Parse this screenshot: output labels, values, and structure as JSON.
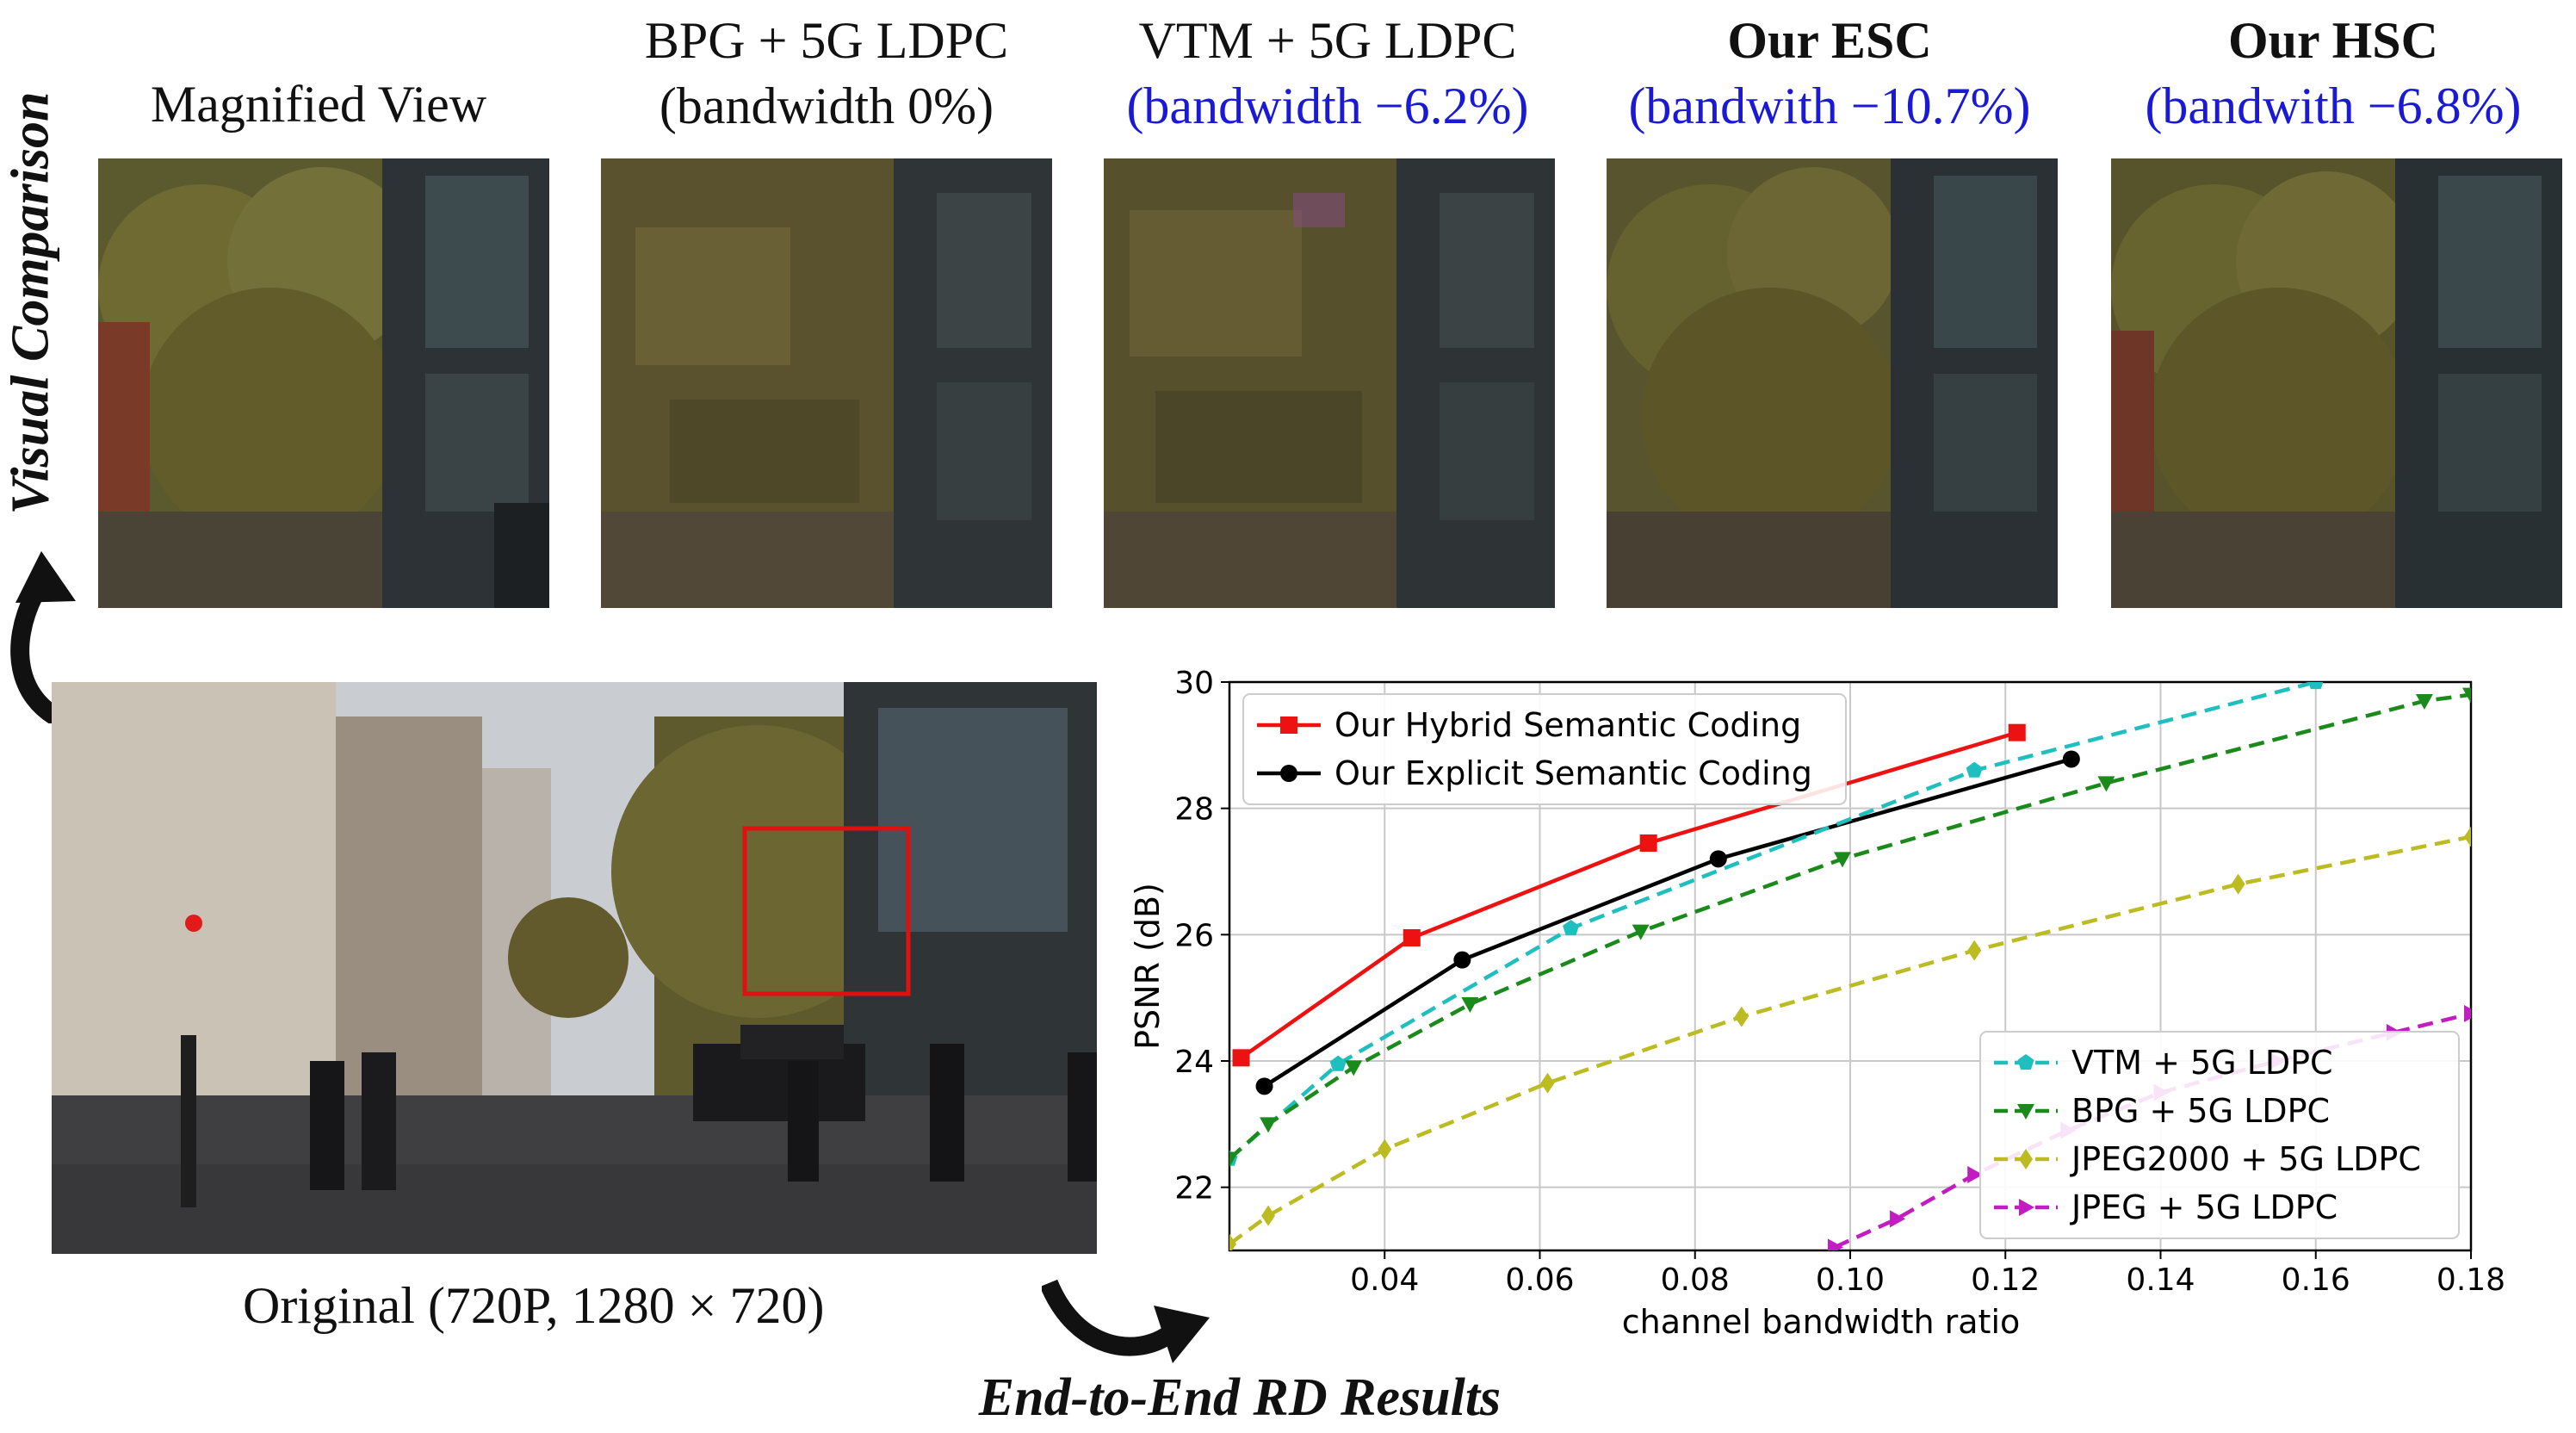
{
  "side_title": "Visual Comparison",
  "bottom_title": "End-to-End RD Results",
  "original_caption": "Original (720P, 1280 × 720)",
  "panels": [
    {
      "top": "Magnified View",
      "bottom": ""
    },
    {
      "top": "BPG + 5G LDPC",
      "bottom": "(bandwidth 0%)"
    },
    {
      "top": "VTM + 5G LDPC",
      "bottom": "(bandwidth −6.2%)"
    },
    {
      "top": "Our ESC",
      "bottom": "(bandwith −10.7%)"
    },
    {
      "top": "Our HSC",
      "bottom": "(bandwith −6.8%)"
    }
  ],
  "colors": {
    "blue_text": "#1a1ad6",
    "highlight_box": "#e01010"
  },
  "chart_data": {
    "type": "line",
    "xlabel": "channel bandwidth ratio",
    "ylabel": "PSNR (dB)",
    "xlim": [
      0.02,
      0.18
    ],
    "ylim": [
      21,
      30
    ],
    "xticks": [
      "0.04",
      "0.06",
      "0.08",
      "0.10",
      "0.12",
      "0.14",
      "0.16",
      "0.18"
    ],
    "yticks": [
      "22",
      "24",
      "26",
      "28",
      "30"
    ],
    "grid": true,
    "legends": [
      {
        "placement": "top-left",
        "entries": [
          "Our Hybrid Semantic Coding",
          "Our Explicit Semantic Coding"
        ]
      },
      {
        "placement": "bottom-right",
        "entries": [
          "VTM + 5G LDPC",
          "BPG + 5G LDPC",
          "JPEG2000 + 5G LDPC",
          "JPEG + 5G LDPC"
        ]
      }
    ],
    "series": [
      {
        "name": "Our Hybrid Semantic Coding",
        "color": "#ee1111",
        "style": "solid",
        "marker": "square",
        "x": [
          0.0215,
          0.0435,
          0.074,
          0.1215
        ],
        "y": [
          24.05,
          25.95,
          27.45,
          29.2
        ]
      },
      {
        "name": "Our Explicit Semantic Coding",
        "color": "#000000",
        "style": "solid",
        "marker": "circle",
        "x": [
          0.0245,
          0.05,
          0.083,
          0.1285
        ],
        "y": [
          23.6,
          25.6,
          27.2,
          28.78
        ]
      },
      {
        "name": "VTM + 5G LDPC",
        "color": "#1fbfbf",
        "style": "dashed",
        "marker": "pentagon",
        "x": [
          0.02,
          0.034,
          0.064,
          0.116,
          0.16
        ],
        "y": [
          22.45,
          23.95,
          26.1,
          28.6,
          30.0
        ]
      },
      {
        "name": "BPG + 5G LDPC",
        "color": "#1a8a1a",
        "style": "dashed",
        "marker": "triangle-down",
        "x": [
          0.02,
          0.025,
          0.036,
          0.051,
          0.073,
          0.099,
          0.133,
          0.174,
          0.18
        ],
        "y": [
          22.45,
          23.0,
          23.9,
          24.9,
          26.05,
          27.2,
          28.4,
          29.7,
          29.8
        ]
      },
      {
        "name": "JPEG2000 + 5G LDPC",
        "color": "#bcbc22",
        "style": "dashed",
        "marker": "diamond",
        "x": [
          0.02,
          0.025,
          0.04,
          0.061,
          0.086,
          0.116,
          0.15,
          0.18
        ],
        "y": [
          21.1,
          21.55,
          22.6,
          23.65,
          24.7,
          25.75,
          26.8,
          27.55
        ]
      },
      {
        "name": "JPEG + 5G LDPC",
        "color": "#c21cc2",
        "style": "dashed",
        "marker": "triangle-right",
        "x": [
          0.098,
          0.106,
          0.116,
          0.128,
          0.14,
          0.155,
          0.17,
          0.18
        ],
        "y": [
          21.05,
          21.5,
          22.2,
          22.9,
          23.5,
          24.0,
          24.45,
          24.75
        ]
      }
    ]
  }
}
